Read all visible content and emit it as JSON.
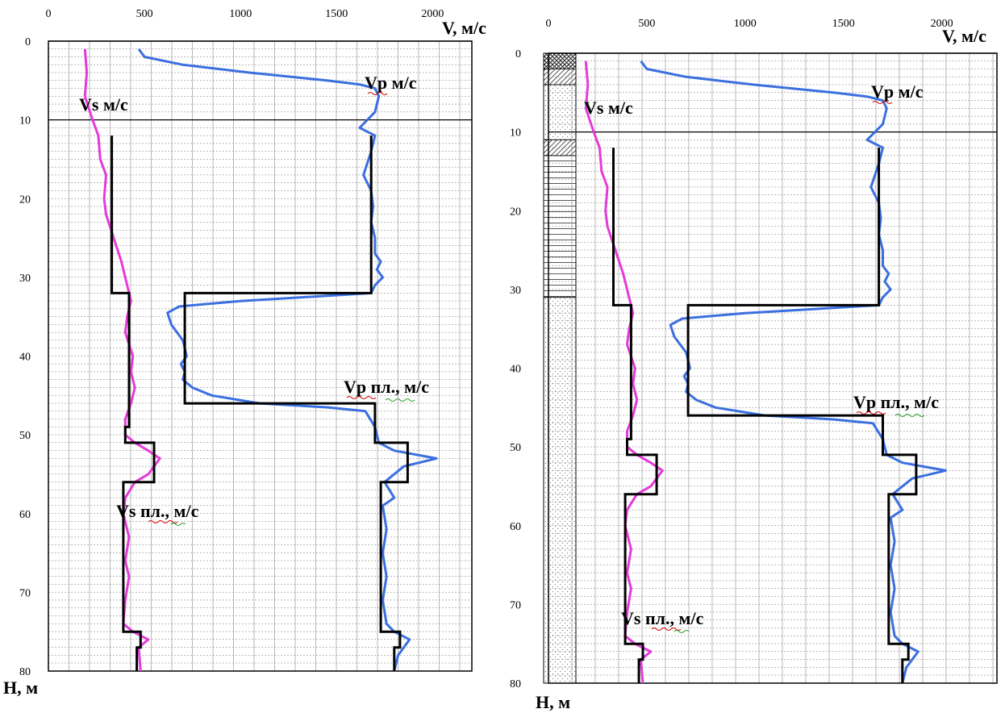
{
  "chart_data": [
    {
      "type": "line",
      "id": "left-panel",
      "x_axis_title": "V, м/с",
      "y_axis_title": "H, м",
      "x_ticks": [
        "0",
        "500",
        "1000",
        "1500",
        "2000"
      ],
      "y_ticks": [
        "0",
        "10",
        "20",
        "30",
        "40",
        "50",
        "60",
        "70",
        "80"
      ],
      "xlim": [
        0,
        2200
      ],
      "ylim": [
        0,
        80
      ],
      "grid": true,
      "labels": {
        "vp": "Vp м/с",
        "vs": "Vs м/с",
        "vp_layer": "Vp пл., м/с",
        "vs_layer": "Vs пл., м/с"
      },
      "series": [
        {
          "key": "vp",
          "color": "#3b6fe0",
          "points": [
            [
              470,
              1
            ],
            [
              500,
              2
            ],
            [
              700,
              3
            ],
            [
              1050,
              4
            ],
            [
              1450,
              5
            ],
            [
              1620,
              5.5
            ],
            [
              1700,
              6
            ],
            [
              1720,
              7
            ],
            [
              1700,
              9
            ],
            [
              1620,
              11
            ],
            [
              1700,
              12
            ],
            [
              1680,
              14
            ],
            [
              1640,
              17
            ],
            [
              1680,
              19
            ],
            [
              1690,
              21
            ],
            [
              1680,
              23
            ],
            [
              1700,
              25
            ],
            [
              1700,
              27
            ],
            [
              1730,
              28
            ],
            [
              1710,
              29
            ],
            [
              1740,
              30
            ],
            [
              1700,
              31
            ],
            [
              1680,
              32
            ],
            [
              1000,
              33
            ],
            [
              680,
              33.7
            ],
            [
              620,
              34.5
            ],
            [
              640,
              36
            ],
            [
              700,
              38
            ],
            [
              720,
              40
            ],
            [
              690,
              41
            ],
            [
              710,
              42
            ],
            [
              700,
              43
            ],
            [
              750,
              44
            ],
            [
              850,
              45
            ],
            [
              1100,
              46
            ],
            [
              1450,
              46.5
            ],
            [
              1650,
              47
            ],
            [
              1700,
              49
            ],
            [
              1720,
              51
            ],
            [
              1800,
              52
            ],
            [
              2020,
              53
            ],
            [
              1850,
              54
            ],
            [
              1750,
              56
            ],
            [
              1800,
              58
            ],
            [
              1740,
              59
            ],
            [
              1760,
              62
            ],
            [
              1740,
              65
            ],
            [
              1760,
              68
            ],
            [
              1740,
              71
            ],
            [
              1760,
              74
            ],
            [
              1800,
              75
            ],
            [
              1880,
              76
            ],
            [
              1820,
              78
            ],
            [
              1800,
              80
            ]
          ]
        },
        {
          "key": "vs",
          "color": "#e43bd8",
          "points": [
            [
              190,
              1
            ],
            [
              200,
              4
            ],
            [
              190,
              7
            ],
            [
              230,
              10
            ],
            [
              260,
              12
            ],
            [
              270,
              15
            ],
            [
              300,
              17
            ],
            [
              290,
              20
            ],
            [
              300,
              22
            ],
            [
              340,
              25
            ],
            [
              380,
              28
            ],
            [
              400,
              30
            ],
            [
              430,
              33
            ],
            [
              410,
              35
            ],
            [
              400,
              37
            ],
            [
              440,
              40
            ],
            [
              430,
              42
            ],
            [
              450,
              44
            ],
            [
              430,
              46
            ],
            [
              400,
              48
            ],
            [
              400,
              50
            ],
            [
              450,
              51
            ],
            [
              520,
              52
            ],
            [
              580,
              53
            ],
            [
              520,
              55
            ],
            [
              450,
              56
            ],
            [
              400,
              58
            ],
            [
              390,
              60
            ],
            [
              420,
              63
            ],
            [
              400,
              66
            ],
            [
              420,
              68
            ],
            [
              400,
              71
            ],
            [
              390,
              74
            ],
            [
              440,
              75
            ],
            [
              520,
              76
            ],
            [
              470,
              77
            ],
            [
              480,
              80
            ]
          ]
        },
        {
          "key": "vp_layer",
          "color": "#000000",
          "points": [
            [
              1680,
              12
            ],
            [
              1680,
              32
            ],
            [
              710,
              32
            ],
            [
              710,
              46
            ],
            [
              1700,
              46
            ],
            [
              1700,
              51
            ],
            [
              1870,
              51
            ],
            [
              1870,
              56
            ],
            [
              1730,
              56
            ],
            [
              1730,
              75
            ],
            [
              1830,
              75
            ],
            [
              1830,
              77
            ],
            [
              1800,
              77
            ],
            [
              1800,
              80
            ]
          ]
        },
        {
          "key": "vs_layer",
          "color": "#000000",
          "points": [
            [
              330,
              12
            ],
            [
              330,
              32
            ],
            [
              420,
              32
            ],
            [
              420,
              49
            ],
            [
              400,
              49
            ],
            [
              400,
              51
            ],
            [
              550,
              51
            ],
            [
              550,
              56
            ],
            [
              390,
              56
            ],
            [
              390,
              75
            ],
            [
              480,
              75
            ],
            [
              480,
              77
            ],
            [
              460,
              77
            ],
            [
              460,
              80
            ]
          ]
        }
      ]
    },
    {
      "type": "line",
      "id": "right-panel",
      "x_axis_title": "V, м/с",
      "y_axis_title": "H, м",
      "x_ticks": [
        "0",
        "500",
        "1000",
        "1500",
        "2000"
      ],
      "y_ticks": [
        "0",
        "10",
        "20",
        "30",
        "40",
        "50",
        "60",
        "70",
        "80"
      ],
      "xlim": [
        0,
        2200
      ],
      "ylim": [
        0,
        80
      ],
      "grid": true,
      "labels": {
        "vp": "Vp м/с",
        "vs": "Vs м/с",
        "vp_layer": "Vp пл., м/с",
        "vs_layer": "Vs пл., м/с"
      },
      "series": [
        {
          "key": "vp",
          "color": "#3b6fe0",
          "points": [
            [
              470,
              1
            ],
            [
              500,
              2
            ],
            [
              700,
              3
            ],
            [
              1050,
              4
            ],
            [
              1450,
              5
            ],
            [
              1620,
              5.5
            ],
            [
              1700,
              6
            ],
            [
              1720,
              7
            ],
            [
              1700,
              9
            ],
            [
              1620,
              11
            ],
            [
              1700,
              12
            ],
            [
              1680,
              14
            ],
            [
              1640,
              17
            ],
            [
              1680,
              19
            ],
            [
              1690,
              21
            ],
            [
              1680,
              23
            ],
            [
              1700,
              25
            ],
            [
              1700,
              27
            ],
            [
              1730,
              28
            ],
            [
              1710,
              29
            ],
            [
              1740,
              30
            ],
            [
              1700,
              31
            ],
            [
              1680,
              32
            ],
            [
              1000,
              33
            ],
            [
              680,
              33.7
            ],
            [
              620,
              34.5
            ],
            [
              640,
              36
            ],
            [
              700,
              38
            ],
            [
              720,
              40
            ],
            [
              690,
              41
            ],
            [
              710,
              42
            ],
            [
              700,
              43
            ],
            [
              750,
              44
            ],
            [
              850,
              45
            ],
            [
              1100,
              46
            ],
            [
              1450,
              46.5
            ],
            [
              1650,
              47
            ],
            [
              1700,
              49
            ],
            [
              1720,
              51
            ],
            [
              1800,
              52
            ],
            [
              2020,
              53
            ],
            [
              1850,
              54
            ],
            [
              1750,
              56
            ],
            [
              1800,
              58
            ],
            [
              1740,
              59
            ],
            [
              1760,
              62
            ],
            [
              1740,
              65
            ],
            [
              1760,
              68
            ],
            [
              1740,
              71
            ],
            [
              1760,
              74
            ],
            [
              1800,
              75
            ],
            [
              1880,
              76
            ],
            [
              1820,
              78
            ],
            [
              1800,
              80
            ]
          ]
        },
        {
          "key": "vs",
          "color": "#e43bd8",
          "points": [
            [
              190,
              1
            ],
            [
              200,
              4
            ],
            [
              190,
              7
            ],
            [
              230,
              10
            ],
            [
              260,
              12
            ],
            [
              270,
              15
            ],
            [
              300,
              17
            ],
            [
              290,
              20
            ],
            [
              300,
              22
            ],
            [
              340,
              25
            ],
            [
              380,
              28
            ],
            [
              400,
              30
            ],
            [
              430,
              33
            ],
            [
              410,
              35
            ],
            [
              400,
              37
            ],
            [
              440,
              40
            ],
            [
              430,
              42
            ],
            [
              450,
              44
            ],
            [
              430,
              46
            ],
            [
              400,
              48
            ],
            [
              400,
              50
            ],
            [
              450,
              51
            ],
            [
              520,
              52
            ],
            [
              580,
              53
            ],
            [
              520,
              55
            ],
            [
              450,
              56
            ],
            [
              400,
              58
            ],
            [
              390,
              60
            ],
            [
              420,
              63
            ],
            [
              400,
              66
            ],
            [
              420,
              68
            ],
            [
              400,
              71
            ],
            [
              390,
              74
            ],
            [
              440,
              75
            ],
            [
              520,
              76
            ],
            [
              470,
              77
            ],
            [
              480,
              80
            ]
          ]
        },
        {
          "key": "vp_layer",
          "color": "#000000",
          "points": [
            [
              1680,
              12
            ],
            [
              1680,
              32
            ],
            [
              710,
              32
            ],
            [
              710,
              46
            ],
            [
              1700,
              46
            ],
            [
              1700,
              51
            ],
            [
              1870,
              51
            ],
            [
              1870,
              56
            ],
            [
              1730,
              56
            ],
            [
              1730,
              75
            ],
            [
              1830,
              75
            ],
            [
              1830,
              77
            ],
            [
              1800,
              77
            ],
            [
              1800,
              80
            ]
          ]
        },
        {
          "key": "vs_layer",
          "color": "#000000",
          "points": [
            [
              330,
              12
            ],
            [
              330,
              32
            ],
            [
              420,
              32
            ],
            [
              420,
              49
            ],
            [
              400,
              49
            ],
            [
              400,
              51
            ],
            [
              550,
              51
            ],
            [
              550,
              56
            ],
            [
              390,
              56
            ],
            [
              390,
              75
            ],
            [
              480,
              75
            ],
            [
              480,
              77
            ],
            [
              460,
              77
            ],
            [
              460,
              80
            ]
          ]
        }
      ],
      "lithology_column": [
        {
          "from": 0,
          "to": 2,
          "pattern": "crosshatch"
        },
        {
          "from": 2,
          "to": 4,
          "pattern": "diagonal"
        },
        {
          "from": 4,
          "to": 11,
          "pattern": "dots"
        },
        {
          "from": 11,
          "to": 13,
          "pattern": "diagonal"
        },
        {
          "from": 13,
          "to": 31,
          "pattern": "horizontal-lines"
        },
        {
          "from": 31,
          "to": 80,
          "pattern": "dots"
        }
      ]
    }
  ]
}
